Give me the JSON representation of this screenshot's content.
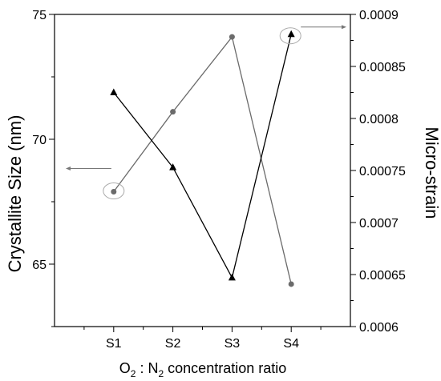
{
  "chart_data": {
    "type": "line",
    "categories": [
      "S1",
      "S2",
      "S3",
      "S4"
    ],
    "xlabel_parts": [
      "O",
      "2",
      " : N",
      "2",
      " concentration ratio"
    ],
    "ylabel_left": "Crystallite Size (nm)",
    "ylabel_right": "Micro-strain",
    "ylim_left": [
      62.5,
      75
    ],
    "ylim_right": [
      0.0006,
      0.0009
    ],
    "yticks_left": [
      65,
      70,
      75
    ],
    "yticks_right": [
      0.0006,
      0.00065,
      0.0007,
      0.00075,
      0.0008,
      0.00085,
      0.0009
    ],
    "ytick_labels_right": [
      "0.0006",
      "0.00065",
      "0.0007",
      "0.00075",
      "0.0008",
      "0.00085",
      "0.0009"
    ],
    "grid": false,
    "series": [
      {
        "axis": "left",
        "marker": "circle",
        "color": "#6b6b6b",
        "values": [
          67.9,
          71.1,
          74.1,
          64.2
        ]
      },
      {
        "axis": "right",
        "marker": "triangle",
        "color": "#000000",
        "values": [
          0.000825,
          0.000753,
          0.000647,
          0.000881
        ]
      }
    ]
  }
}
